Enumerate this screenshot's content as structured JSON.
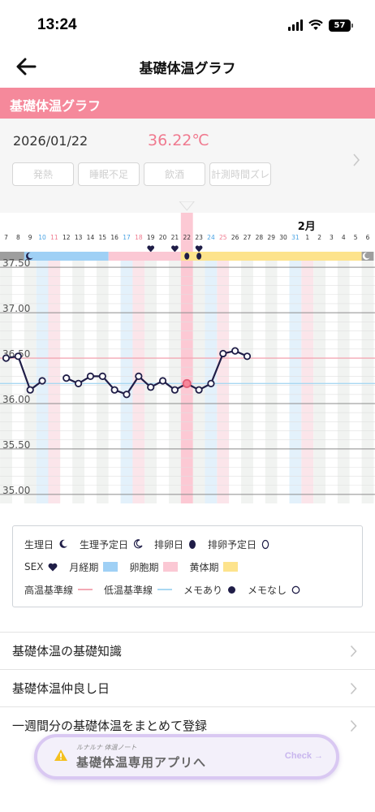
{
  "status_bar": {
    "time": "13:24",
    "battery": "57"
  },
  "nav": {
    "title": "基礎体温グラフ",
    "back_icon": "arrow-left-icon"
  },
  "section_banner": {
    "title": "基礎体温グラフ"
  },
  "day_panel": {
    "date": "2026/01/22",
    "temperature": "36.22℃",
    "tags": [
      "発熱",
      "睡眠不足",
      "飲酒",
      "計測時間ズレ"
    ]
  },
  "chart_data": {
    "type": "line",
    "month_label": "2月",
    "selected_date": "1/22",
    "dates": [
      "1/7",
      "1/8",
      "1/9",
      "1/10",
      "1/11",
      "1/12",
      "1/13",
      "1/14",
      "1/15",
      "1/16",
      "1/17",
      "1/18",
      "1/19",
      "1/20",
      "1/21",
      "1/22",
      "1/23",
      "1/24",
      "1/25",
      "1/26",
      "1/27",
      "1/28",
      "1/29",
      "1/30",
      "1/31",
      "2/1",
      "2/2",
      "2/3",
      "2/4",
      "2/5",
      "2/6"
    ],
    "day_labels": [
      "7",
      "8",
      "9",
      "10",
      "11",
      "12",
      "13",
      "14",
      "15",
      "16",
      "17",
      "18",
      "19",
      "20",
      "21",
      "22",
      "23",
      "24",
      "25",
      "26",
      "27",
      "28",
      "29",
      "30",
      "31",
      "1",
      "2",
      "3",
      "4",
      "5",
      "6"
    ],
    "weekend_day_labels": [
      "10",
      "11",
      "17",
      "18",
      "24",
      "25",
      "31",
      "1"
    ],
    "y_ticks": [
      "37.50",
      "37.00",
      "36.50",
      "36.00",
      "35.50",
      "35.00"
    ],
    "ylim": [
      34.9,
      37.6
    ],
    "high_baseline": 36.5,
    "low_baseline": 36.22,
    "series": [
      {
        "values": [
          36.5,
          36.52,
          36.15,
          36.25,
          null,
          36.28,
          36.22,
          36.3,
          36.3,
          36.15,
          36.1,
          36.3,
          36.18,
          36.25,
          36.15,
          36.22,
          36.15,
          36.22,
          36.55,
          36.58,
          36.52,
          null,
          null,
          null,
          null,
          null,
          null,
          null,
          null,
          null,
          null
        ]
      }
    ],
    "selected_value": 36.22,
    "sex_dates": [
      "1/19",
      "1/21",
      "1/23"
    ],
    "ovulation_marker_dates": [
      "1/22",
      "1/23"
    ],
    "phases": [
      {
        "type": "period-start",
        "from": "1/6",
        "to": "1/9"
      },
      {
        "type": "menstrual",
        "from": "1/9",
        "to": "1/15"
      },
      {
        "type": "follicular",
        "from": "1/16",
        "to": "1/21"
      },
      {
        "type": "luteal",
        "from": "1/22",
        "to": "2/5"
      },
      {
        "type": "period-due",
        "from": "2/6",
        "to": "2/6"
      }
    ],
    "colors": {
      "menstrual": "#9fd0f5",
      "follicular": "#fbc8d4",
      "luteal": "#fde38c",
      "period-start": "#9e9e9e",
      "period-due": "#9e9e9e",
      "line": "#1f1d47",
      "high_baseline": "#f3a9b5",
      "low_baseline": "#a9d8f2",
      "selected": "#f7879a"
    }
  },
  "legend": {
    "rows": [
      [
        {
          "label": "生理日",
          "icon": "crescent-solid-icon"
        },
        {
          "label": "生理予定日",
          "icon": "crescent-outline-icon"
        },
        {
          "label": "排卵日",
          "icon": "egg-solid-icon"
        },
        {
          "label": "排卵予定日",
          "icon": "egg-outline-icon"
        }
      ],
      [
        {
          "label": "SEX",
          "icon": "heart-icon"
        },
        {
          "label": "月経期",
          "icon": "menstrual-swatch-icon",
          "color": "#9fd0f5"
        },
        {
          "label": "卵胞期",
          "icon": "follicular-swatch-icon",
          "color": "#fbc8d4"
        },
        {
          "label": "黄体期",
          "icon": "luteal-swatch-icon",
          "color": "#fde38c"
        }
      ],
      [
        {
          "label": "高温基準線",
          "icon": "high-baseline-icon",
          "color": "#f3a9b5"
        },
        {
          "label": "低温基準線",
          "icon": "low-baseline-icon",
          "color": "#a9d8f2"
        },
        {
          "label": "メモあり",
          "icon": "memo-solid-icon"
        },
        {
          "label": "メモなし",
          "icon": "memo-outline-icon"
        }
      ]
    ]
  },
  "links": [
    {
      "label": "基礎体温の基礎知識"
    },
    {
      "label": "基礎体温仲良し日"
    },
    {
      "label": "一週間分の基礎体温をまとめて登録"
    }
  ],
  "promo": {
    "sub": "ルナルナ 体温ノート",
    "main": "基礎体温専用アプリへ",
    "check": "Check →",
    "icon": "warning-icon"
  }
}
